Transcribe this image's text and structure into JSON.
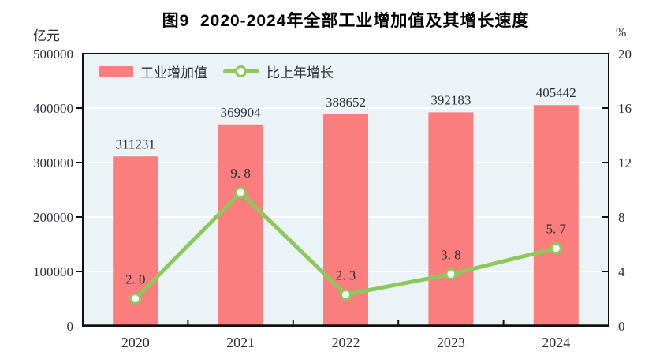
{
  "chart_data": {
    "type": "bar+line",
    "title": "图9  2020-2024年全部工业增加值及其增长速度",
    "categories": [
      "2020",
      "2021",
      "2022",
      "2023",
      "2024"
    ],
    "series": [
      {
        "name": "工业增加值",
        "type": "bar",
        "axis": "left",
        "unit": "亿元",
        "values": [
          311231,
          369904,
          388652,
          392183,
          405442
        ],
        "value_labels": [
          "311231",
          "369904",
          "388652",
          "392183",
          "405442"
        ]
      },
      {
        "name": "比上年增长",
        "type": "line",
        "axis": "right",
        "unit": "%",
        "values": [
          2.0,
          9.8,
          2.3,
          3.8,
          5.7
        ],
        "value_labels": [
          "2. 0",
          "9. 8",
          "2. 3",
          "3. 8",
          "5. 7"
        ]
      }
    ],
    "left_axis": {
      "label": "亿元",
      "min": 0,
      "max": 500000,
      "ticks": [
        0,
        100000,
        200000,
        300000,
        400000,
        500000
      ],
      "tick_labels": [
        "0",
        "100000",
        "200000",
        "300000",
        "400000",
        "500000"
      ]
    },
    "right_axis": {
      "label": "%",
      "min": 0,
      "max": 20,
      "ticks": [
        0,
        4,
        8,
        12,
        16,
        20
      ],
      "tick_labels": [
        "0",
        "4",
        "8",
        "12",
        "16",
        "20"
      ]
    },
    "legend": {
      "position": "top-inside"
    },
    "grid": "horizontal",
    "colors": {
      "bar": "#fa7e7e",
      "line": "#8cc85c",
      "marker_fill": "#ffffff",
      "plot_background": "#ecf3f7",
      "gridline": "#ffffff",
      "frame": "#111111",
      "text": "#2e2e38",
      "title_text": "#000000"
    }
  }
}
